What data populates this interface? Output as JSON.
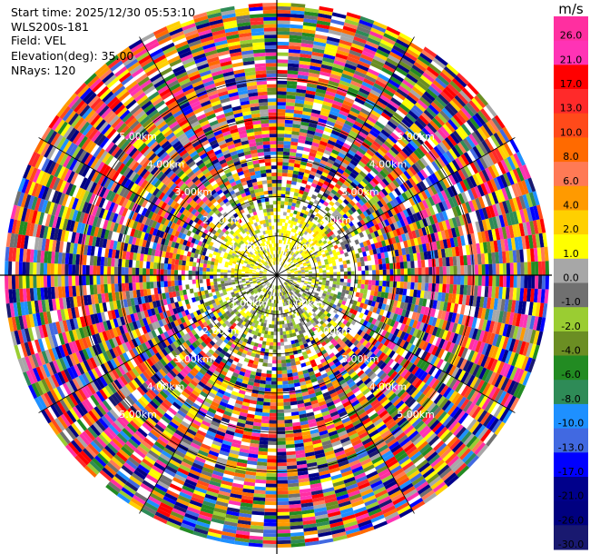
{
  "info": {
    "start_time": "Start time: 2025/12/30 05:53:10",
    "instrument": "WLS200s-181",
    "field": "Field: VEL",
    "elevation": "Elevation(deg): 35.00",
    "nrays": "NRays: 120"
  },
  "chart_data": {
    "type": "heatmap",
    "projection": "polar-ppi",
    "field": "VEL",
    "nrays": 120,
    "elevation_deg": 35.0,
    "max_range_km": 7.0,
    "range_rings_km": [
      1,
      2,
      3,
      4,
      5
    ],
    "range_ring_labels": [
      "1.00km",
      "2.00km",
      "3.00km",
      "4.00km",
      "5.00km"
    ],
    "colorbar": {
      "unit": "m/s",
      "min": -30.0,
      "max": 30.0,
      "tick_labels": [
        "26.0",
        "21.0",
        "17.0",
        "13.0",
        "10.0",
        "8.0",
        "6.0",
        "4.0",
        "2.0",
        "1.0",
        "0.0",
        "-1.0",
        "-2.0",
        "-4.0",
        "-6.0",
        "-8.0",
        "-10.0",
        "-13.0",
        "-17.0",
        "-21.0",
        "-26.0",
        "-30.0"
      ],
      "colors": [
        "#ff2fa0",
        "#ff33b5",
        "#ff0000",
        "#ff2a2a",
        "#ff4a1a",
        "#ff6a00",
        "#ff7a55",
        "#ff9a00",
        "#ffd000",
        "#ffff00",
        "#a7a7a7",
        "#707070",
        "#9acd32",
        "#6b8e23",
        "#228b22",
        "#2e8b57",
        "#1e90ff",
        "#4169e1",
        "#0000ff",
        "#00008b",
        "#000080",
        "#191970"
      ]
    }
  }
}
